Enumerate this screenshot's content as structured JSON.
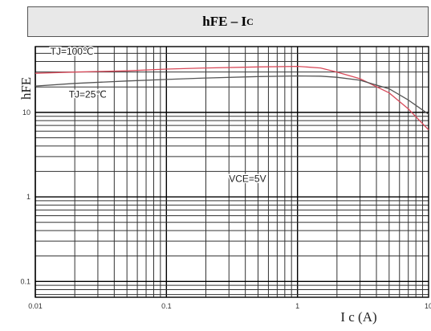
{
  "chart_data": {
    "type": "line",
    "title_main": "hFE – I",
    "title_sub": "C",
    "xlabel": "I c (A)",
    "ylabel": "hFE",
    "xscale": "log",
    "yscale": "log",
    "xlim": [
      0.01,
      10
    ],
    "ylim": [
      0.065,
      60
    ],
    "grid": true,
    "x_tick_labels": [
      {
        "value": 0.01,
        "label": "0.01"
      },
      {
        "value": 0.1,
        "label": "0.1"
      },
      {
        "value": 1,
        "label": "1"
      },
      {
        "value": 10,
        "label": "10"
      }
    ],
    "y_tick_labels": [
      {
        "value": 0.1,
        "label": "0.1"
      },
      {
        "value": 1,
        "label": "1"
      },
      {
        "value": 10,
        "label": "10"
      }
    ],
    "annotations": [
      {
        "text": "TJ=100℃",
        "x": 0.013,
        "y": 48
      },
      {
        "text": "TJ=25℃",
        "x": 0.018,
        "y": 15
      },
      {
        "text": "VCE=5V",
        "x": 0.3,
        "y": 1.5
      }
    ],
    "series": [
      {
        "name": "TJ=100℃",
        "color": "#d84a5a",
        "x": [
          0.01,
          0.02,
          0.05,
          0.1,
          0.2,
          0.5,
          1,
          1.5,
          2,
          3,
          5,
          7,
          10
        ],
        "y": [
          29,
          30,
          31,
          32.5,
          33.5,
          34.5,
          35,
          33.5,
          30,
          25,
          17,
          11,
          6.2
        ]
      },
      {
        "name": "TJ=25℃",
        "color": "#555555",
        "x": [
          0.01,
          0.02,
          0.05,
          0.1,
          0.2,
          0.5,
          1,
          1.5,
          2,
          3,
          5,
          7,
          10
        ],
        "y": [
          20.5,
          22,
          23.5,
          24.5,
          25.5,
          26.5,
          27,
          26.8,
          26,
          24,
          19,
          14,
          9.5
        ]
      }
    ]
  }
}
